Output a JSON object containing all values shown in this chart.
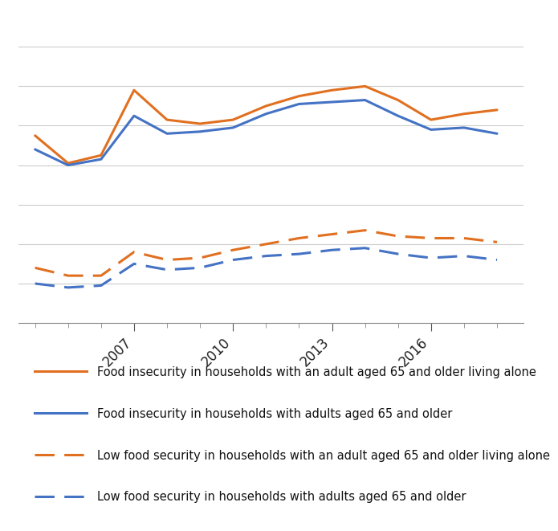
{
  "years": [
    2004,
    2005,
    2006,
    2007,
    2008,
    2009,
    2010,
    2011,
    2012,
    2013,
    2014,
    2015,
    2016,
    2017,
    2018
  ],
  "solid_blue": [
    8.8,
    8.0,
    8.3,
    10.5,
    9.6,
    9.7,
    9.9,
    10.6,
    11.1,
    11.2,
    11.3,
    10.5,
    9.8,
    9.9,
    9.6
  ],
  "solid_orange": [
    9.5,
    8.1,
    8.5,
    11.8,
    10.3,
    10.1,
    10.3,
    11.0,
    11.5,
    11.8,
    12.0,
    11.3,
    10.3,
    10.6,
    10.8
  ],
  "dashed_blue": [
    2.0,
    1.8,
    1.9,
    3.0,
    2.7,
    2.8,
    3.2,
    3.4,
    3.5,
    3.7,
    3.8,
    3.5,
    3.3,
    3.4,
    3.2
  ],
  "dashed_orange": [
    2.8,
    2.4,
    2.4,
    3.6,
    3.2,
    3.3,
    3.7,
    4.0,
    4.3,
    4.5,
    4.7,
    4.4,
    4.3,
    4.3,
    4.1
  ],
  "blue_color": "#4472C4",
  "orange_color": "#E07020",
  "xlim": [
    2003.5,
    2018.8
  ],
  "xtick_labels": [
    "2007",
    "2010",
    "2013",
    "2016"
  ],
  "xtick_positions": [
    2007,
    2010,
    2013,
    2016
  ],
  "legend": [
    "Food insecurity in households with an adult aged 65 and older living alone",
    "Food insecurity in households with adults aged 65 and older",
    "Low food security in households with an adult aged 65 and older living alone",
    "Low food security in households with adults aged 65 and older"
  ],
  "background_color": "#ffffff",
  "grid_color": "#cccccc"
}
